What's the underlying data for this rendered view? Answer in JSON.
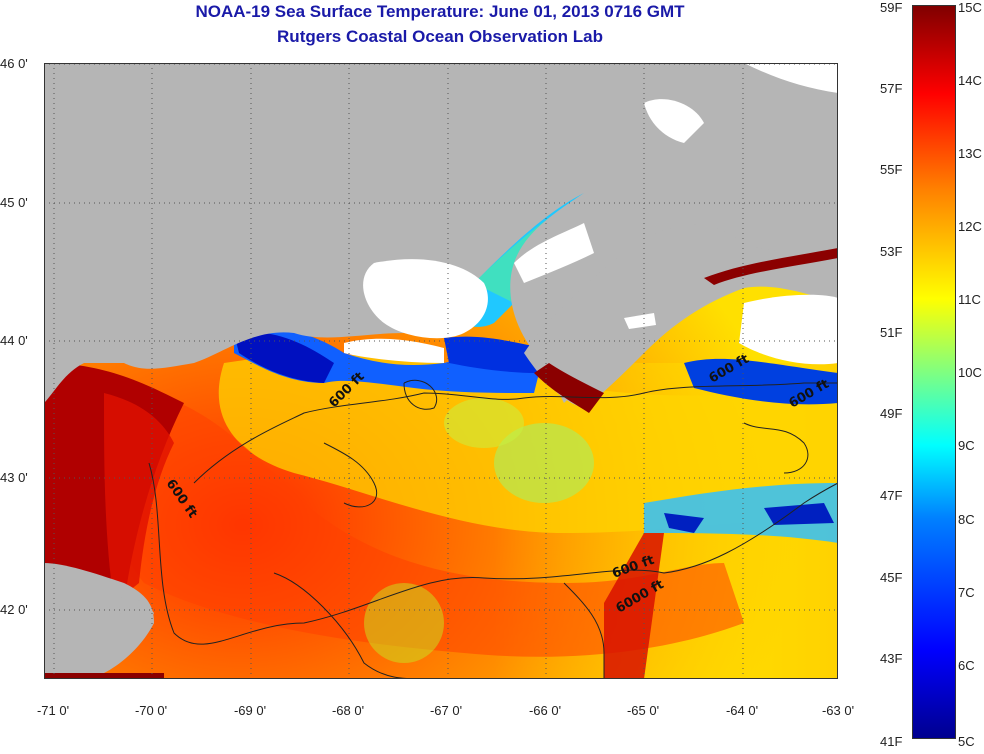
{
  "title": "NOAA-19 Sea Surface Temperature:  June 01, 2013 0716 GMT",
  "subtitle": "Rutgers Coastal Ocean Observation Lab",
  "lat_ticks": [
    "46 0'",
    "45 0'",
    "44 0'",
    "43 0'",
    "42 0'"
  ],
  "lon_ticks": [
    "-71 0'",
    "-70 0'",
    "-69 0'",
    "-68 0'",
    "-67 0'",
    "-66 0'",
    "-65 0'",
    "-64 0'",
    "-63 0'"
  ],
  "colorbar": {
    "fahrenheit": [
      "59F",
      "57F",
      "55F",
      "53F",
      "51F",
      "49F",
      "47F",
      "45F",
      "43F",
      "41F"
    ],
    "celsius": [
      "15C",
      "14C",
      "13C",
      "12C",
      "11C",
      "10C",
      "9C",
      "8C",
      "7C",
      "6C",
      "5C"
    ]
  },
  "contour_labels": [
    "600 ft",
    "600 ft",
    "600 ft",
    "600 ft",
    "600 ft",
    "6000 ft"
  ],
  "colors": {
    "land": "#b5b5b5",
    "cloud": "#ffffff",
    "title": "#1a1aa8"
  }
}
